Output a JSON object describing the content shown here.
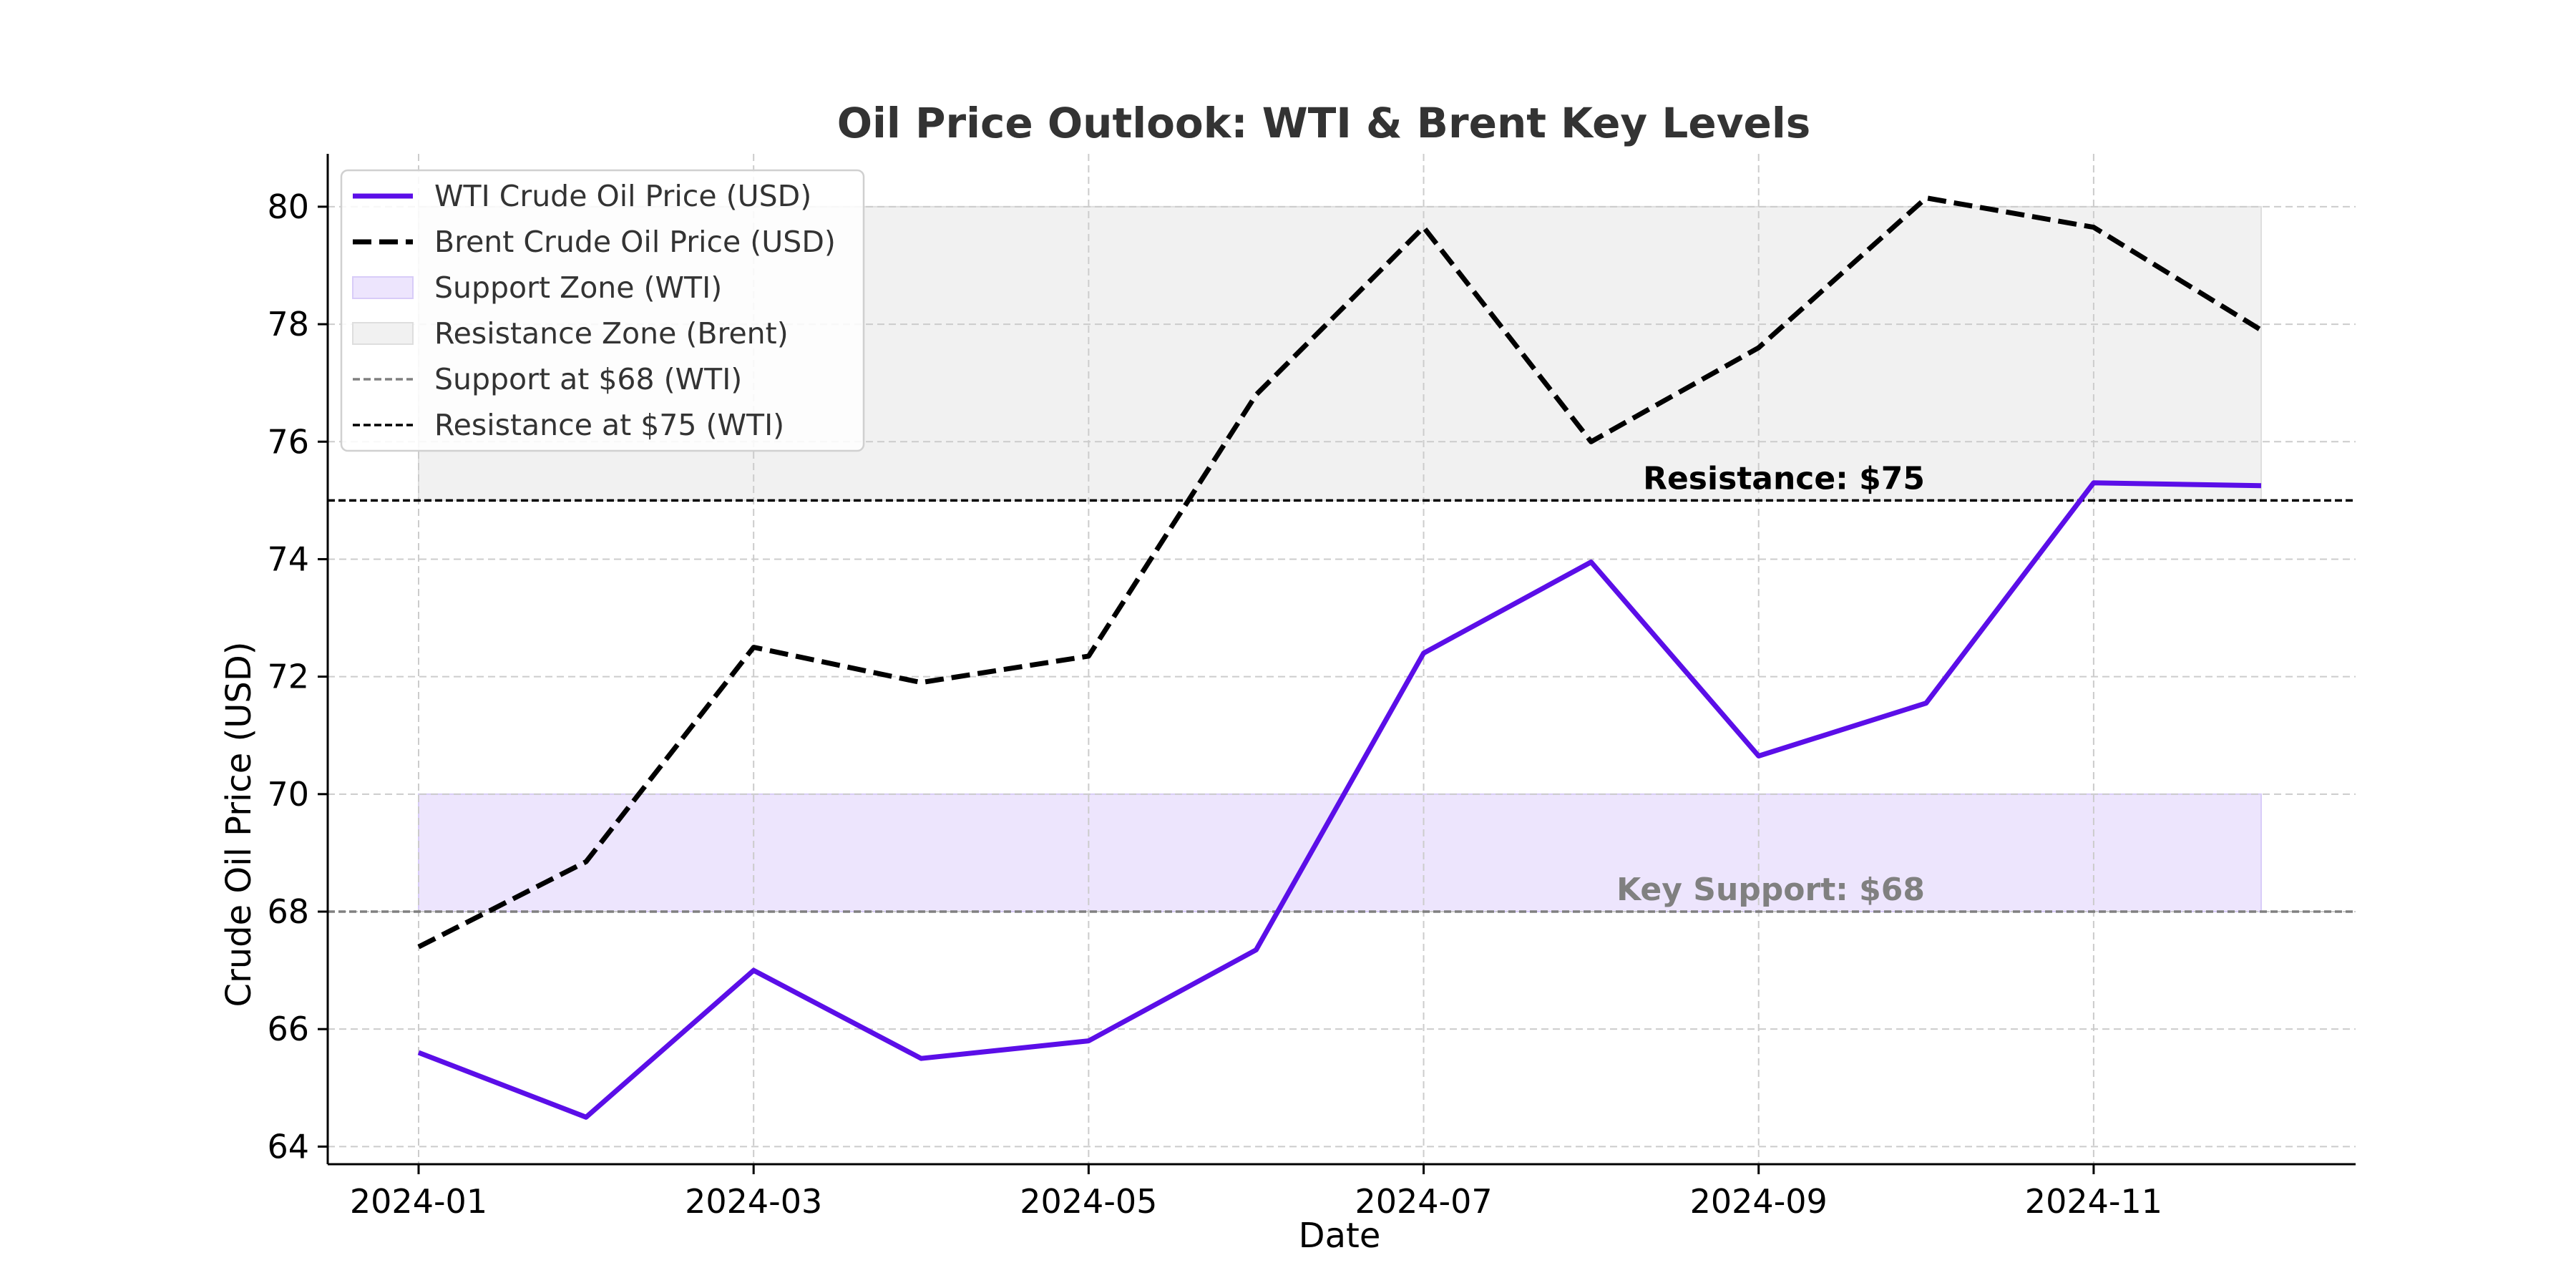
{
  "chart_data": {
    "type": "line",
    "title": "Oil Price Outlook: WTI & Brent Key Levels",
    "xlabel": "Date",
    "ylabel": "Crude Oil Price (USD)",
    "x": [
      "2024-01",
      "2024-02",
      "2024-03",
      "2024-04",
      "2024-05",
      "2024-06",
      "2024-07",
      "2024-08",
      "2024-09",
      "2024-10",
      "2024-11",
      "2024-12"
    ],
    "x_ticks": [
      "2024-01",
      "2024-03",
      "2024-05",
      "2024-07",
      "2024-09",
      "2024-11"
    ],
    "ylim": [
      63.7,
      80.9
    ],
    "y_ticks": [
      64,
      66,
      68,
      70,
      72,
      74,
      76,
      78,
      80
    ],
    "grid": true,
    "legend_position": "top-left",
    "series": [
      {
        "name": "WTI Crude Oil Price (USD)",
        "color": "#5b0ee8",
        "style": "solid",
        "values": [
          65.6,
          64.5,
          67.0,
          65.5,
          65.8,
          67.35,
          72.4,
          73.95,
          70.65,
          71.55,
          75.3,
          75.25
        ]
      },
      {
        "name": "Brent Crude Oil Price (USD)",
        "color": "#000000",
        "style": "dashed",
        "values": [
          67.4,
          68.85,
          72.5,
          71.9,
          72.35,
          76.8,
          79.65,
          76.0,
          77.6,
          80.15,
          79.65,
          77.9
        ]
      }
    ],
    "zones": [
      {
        "name": "Support Zone (WTI)",
        "from": 68,
        "to": 70,
        "color": "#ede5fd",
        "x_start": "2024-01",
        "x_end": "2024-12"
      },
      {
        "name": "Resistance Zone (Brent)",
        "from": 75,
        "to": 80,
        "color": "#f1f1f1",
        "x_start": "2024-01",
        "x_end": "2024-12"
      }
    ],
    "reference_lines": [
      {
        "name": "Support at $68 (WTI)",
        "value": 68,
        "color": "#808080",
        "label": "Key Support: $68"
      },
      {
        "name": "Resistance at $75 (WTI)",
        "value": 75,
        "color": "#000000",
        "label": "Resistance: $75"
      }
    ]
  }
}
